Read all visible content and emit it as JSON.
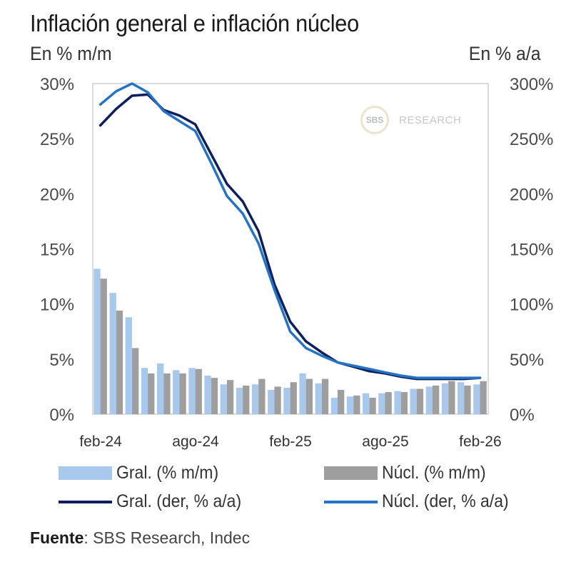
{
  "chart_data": {
    "type": "bar",
    "title": "Inflación general e inflación núcleo",
    "left_axis_label": "En % m/m",
    "right_axis_label": "En % a/a",
    "ylim_left": [
      0,
      30
    ],
    "ylim_right": [
      0,
      300
    ],
    "yticks_left": [
      "0%",
      "5%",
      "10%",
      "15%",
      "20%",
      "25%",
      "30%"
    ],
    "yticks_right": [
      "0%",
      "50%",
      "100%",
      "150%",
      "200%",
      "250%",
      "300%"
    ],
    "xtick_labels": [
      "feb-24",
      "ago-24",
      "feb-25",
      "ago-25",
      "feb-26"
    ],
    "xtick_indices": [
      0,
      6,
      12,
      18,
      24
    ],
    "grid": false,
    "legend_position": "bottom",
    "categories": [
      "feb-24",
      "mar-24",
      "abr-24",
      "may-24",
      "jun-24",
      "jul-24",
      "ago-24",
      "sep-24",
      "oct-24",
      "nov-24",
      "dic-24",
      "ene-25",
      "feb-25",
      "mar-25",
      "abr-25",
      "may-25",
      "jun-25",
      "jul-25",
      "ago-25",
      "sep-25",
      "oct-25",
      "nov-25",
      "dic-25",
      "ene-26",
      "feb-26"
    ],
    "series": [
      {
        "name": "Gral. (% m/m)",
        "type": "bar",
        "axis": "left",
        "color": "#a9c9ec",
        "values": [
          13.2,
          11.0,
          8.8,
          4.2,
          4.6,
          4.0,
          4.2,
          3.5,
          2.7,
          2.4,
          2.7,
          2.2,
          2.4,
          3.7,
          2.8,
          1.5,
          1.6,
          1.9,
          1.9,
          2.1,
          2.3,
          2.5,
          2.8,
          2.9,
          2.7
        ]
      },
      {
        "name": "Núcl. (% m/m)",
        "type": "bar",
        "axis": "left",
        "color": "#9e9e9e",
        "values": [
          12.3,
          9.4,
          6.0,
          3.7,
          3.7,
          3.7,
          4.1,
          3.3,
          3.1,
          2.6,
          3.2,
          2.5,
          2.9,
          3.2,
          3.2,
          2.2,
          1.7,
          1.5,
          2.0,
          2.0,
          2.3,
          2.6,
          3.0,
          2.6,
          3.0
        ]
      },
      {
        "name": "Gral. (der, % a/a)",
        "type": "line",
        "axis": "right",
        "color": "#0d1f5c",
        "values": [
          262,
          277,
          289,
          290,
          276,
          271,
          263,
          236,
          209,
          193,
          166,
          118,
          84,
          66,
          56,
          47,
          43,
          39,
          37,
          34,
          32,
          32,
          32,
          32,
          33
        ]
      },
      {
        "name": "Núcl. (der, % a/a)",
        "type": "line",
        "axis": "right",
        "color": "#2473c4",
        "values": [
          281,
          293,
          300,
          292,
          275,
          266,
          257,
          228,
          198,
          182,
          155,
          113,
          75,
          60,
          53,
          47,
          44,
          41,
          38,
          35,
          33,
          33,
          33,
          33,
          33
        ]
      }
    ]
  },
  "watermark": {
    "circle_text": "SBS",
    "text": "RESEARCH"
  },
  "source": {
    "label": "Fuente",
    "text": ": SBS Research, Indec"
  }
}
